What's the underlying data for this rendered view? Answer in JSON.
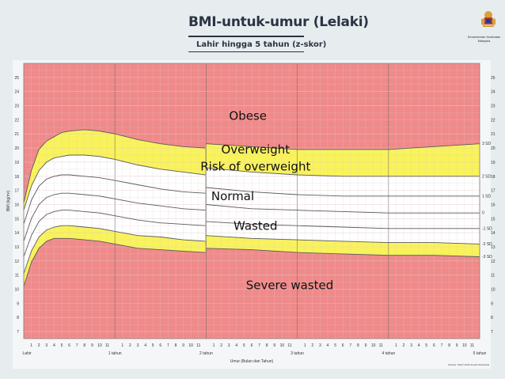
{
  "header": {
    "title": "BMI-untuk-umur (Lelaki)",
    "subtitle": "Lahir hingga 5 tahun (z-skor)",
    "ministry": "Kementerian Kesihatan Malaysia",
    "emblem_icon": "malaysia-coat-of-arms-icon"
  },
  "chart_data": {
    "type": "line",
    "title": "BMI-untuk-umur (Lelaki)",
    "subtitle": "Lahir hingga 5 tahun (z-skor)",
    "xlabel": "Umur (Bulan dan Tahun)",
    "ylabel": "BMI (kg/m²)",
    "xlim": [
      0,
      60
    ],
    "ylim": [
      6.5,
      26
    ],
    "yticks": [
      7,
      8,
      9,
      10,
      11,
      12,
      13,
      14,
      15,
      16,
      17,
      18,
      19,
      20,
      21,
      22,
      23,
      24,
      25
    ],
    "year_labels": [
      {
        "month": 0,
        "label": "Lahir"
      },
      {
        "month": 12,
        "label": "1 tahun"
      },
      {
        "month": 24,
        "label": "2 tahun"
      },
      {
        "month": 36,
        "label": "3 tahun"
      },
      {
        "month": 48,
        "label": "4 tahun"
      },
      {
        "month": 60,
        "label": "5 tahun"
      }
    ],
    "month_tick_labels": [
      "1",
      "2",
      "3",
      "4",
      "5",
      "6",
      "7",
      "8",
      "9",
      "10",
      "11"
    ],
    "x": [
      0,
      1,
      2,
      3,
      4,
      5,
      6,
      8,
      10,
      12,
      15,
      18,
      21,
      23.9,
      24,
      30,
      36,
      42,
      48,
      54,
      60
    ],
    "series": [
      {
        "name": "3",
        "values": [
          16.1,
          18.4,
          19.9,
          20.5,
          20.8,
          21.1,
          21.2,
          21.3,
          21.2,
          21.0,
          20.6,
          20.3,
          20.1,
          20.0,
          20.3,
          20.1,
          19.9,
          19.9,
          19.9,
          20.1,
          20.3
        ]
      },
      {
        "name": "2",
        "values": [
          15.6,
          17.3,
          18.4,
          19.0,
          19.3,
          19.4,
          19.5,
          19.5,
          19.4,
          19.2,
          18.8,
          18.5,
          18.3,
          18.1,
          18.6,
          18.3,
          18.1,
          18.0,
          18.0,
          18.0,
          18.0
        ]
      },
      {
        "name": "1",
        "values": [
          14.6,
          16.3,
          17.3,
          17.8,
          18.0,
          18.1,
          18.1,
          18.0,
          17.9,
          17.7,
          17.4,
          17.1,
          16.9,
          16.8,
          17.2,
          16.9,
          16.7,
          16.6,
          16.6,
          16.6,
          16.6
        ]
      },
      {
        "name": "0",
        "values": [
          13.4,
          15.0,
          16.0,
          16.5,
          16.7,
          16.8,
          16.8,
          16.7,
          16.6,
          16.4,
          16.1,
          15.9,
          15.7,
          15.6,
          16.0,
          15.7,
          15.6,
          15.5,
          15.4,
          15.4,
          15.4
        ]
      },
      {
        "name": "-1",
        "values": [
          12.3,
          13.8,
          14.8,
          15.3,
          15.5,
          15.6,
          15.6,
          15.5,
          15.4,
          15.2,
          14.9,
          14.7,
          14.6,
          14.5,
          14.8,
          14.6,
          14.5,
          14.4,
          14.3,
          14.3,
          14.3
        ]
      },
      {
        "name": "-2",
        "values": [
          11.1,
          12.7,
          13.7,
          14.2,
          14.4,
          14.5,
          14.5,
          14.4,
          14.3,
          14.1,
          13.8,
          13.7,
          13.5,
          13.4,
          13.8,
          13.6,
          13.5,
          13.4,
          13.3,
          13.3,
          13.2
        ]
      },
      {
        "name": "-3",
        "values": [
          10.2,
          11.9,
          12.9,
          13.4,
          13.6,
          13.6,
          13.6,
          13.5,
          13.4,
          13.2,
          12.9,
          12.8,
          12.7,
          12.6,
          12.9,
          12.8,
          12.6,
          12.5,
          12.4,
          12.4,
          12.3
        ]
      }
    ],
    "z_labels": [
      "3 SD",
      "2 SD",
      "1 SD",
      "0",
      "-1 SD",
      "-2 SD",
      "-3 SD"
    ],
    "colors": {
      "red_zone": "#f08a8a",
      "yellow_zone": "#f9f35a",
      "white_zone": "#ffffff",
      "grid": "#e2c9c9",
      "curve": "#5a5a5a",
      "frame": "#8b8b8b"
    },
    "zone_labels": [
      {
        "text": "Obese",
        "month": 29.5,
        "bmi": 22.0
      },
      {
        "text": "Overweight",
        "month": 30.5,
        "bmi": 19.6
      },
      {
        "text": "Risk of overweight",
        "month": 30.5,
        "bmi": 18.4
      },
      {
        "text": "Normal",
        "month": 27.5,
        "bmi": 16.3
      },
      {
        "text": "Wasted",
        "month": 30.5,
        "bmi": 14.2
      },
      {
        "text": "Severe wasted",
        "month": 35.0,
        "bmi": 10.0
      }
    ],
    "grid": true
  },
  "footer": {
    "note": "Sumber: WHO Child Growth Standards"
  }
}
